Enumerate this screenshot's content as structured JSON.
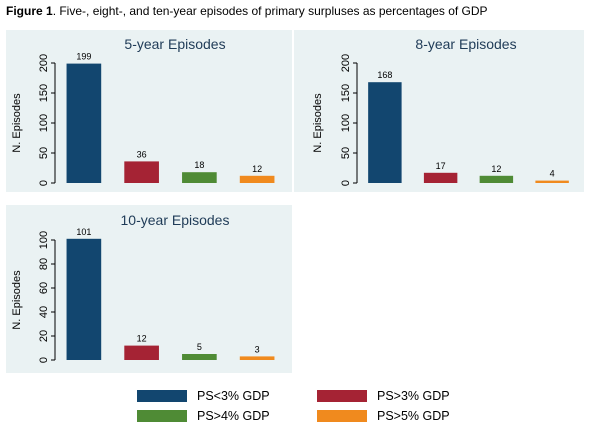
{
  "caption": {
    "figure_label": "Figure 1",
    "text": ". Five-, eight-, and ten-year episodes of primary surpluses as percentages of GDP"
  },
  "colors": {
    "PS<3% GDP": "#12466f",
    "PS>3% GDP": "#a52334",
    "PS>4% GDP": "#4f8b35",
    "PS>5% GDP": "#f08a1e",
    "panel_background": "#eaf2f3",
    "title_color": "#1f3b57"
  },
  "legend": {
    "entries": [
      "PS<3% GDP",
      "PS>3% GDP",
      "PS>4% GDP",
      "PS>5% GDP"
    ]
  },
  "chart_data": [
    {
      "type": "bar",
      "title": "5-year Episodes",
      "ylabel": "N. Episodes",
      "xlabel": "",
      "categories": [
        "PS<3% GDP",
        "PS>3% GDP",
        "PS>4% GDP",
        "PS>5% GDP"
      ],
      "values": [
        199,
        36,
        18,
        12
      ],
      "ylim": [
        0,
        200
      ],
      "yticks": [
        0,
        50,
        100,
        150,
        200
      ],
      "grid": false
    },
    {
      "type": "bar",
      "title": "8-year Episodes",
      "ylabel": "N. Episodes",
      "xlabel": "",
      "categories": [
        "PS<3% GDP",
        "PS>3% GDP",
        "PS>4% GDP",
        "PS>5% GDP"
      ],
      "values": [
        168,
        17,
        12,
        4
      ],
      "ylim": [
        0,
        200
      ],
      "yticks": [
        0,
        50,
        100,
        150,
        200
      ],
      "grid": false
    },
    {
      "type": "bar",
      "title": "10-year Episodes",
      "ylabel": "N. Episodes",
      "xlabel": "",
      "categories": [
        "PS<3% GDP",
        "PS>3% GDP",
        "PS>4% GDP",
        "PS>5% GDP"
      ],
      "values": [
        101,
        12,
        5,
        3
      ],
      "ylim": [
        0,
        100
      ],
      "yticks": [
        0,
        20,
        40,
        60,
        80,
        100
      ],
      "grid": false
    }
  ]
}
